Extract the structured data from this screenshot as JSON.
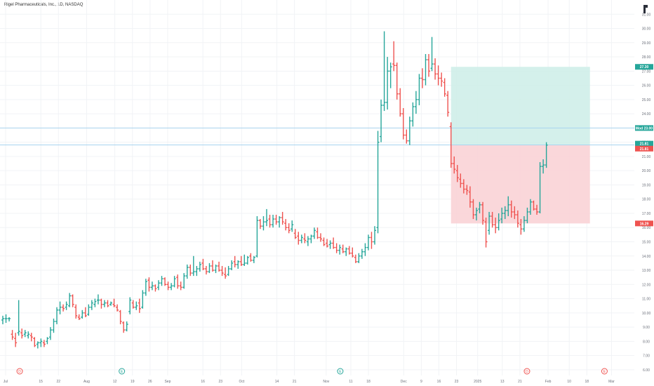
{
  "header": {
    "title": "Rigel Pharmaceuticals, Inc., 1D, NASDAQ"
  },
  "colors": {
    "up": "#26a69a",
    "down": "#ef5350",
    "profit_zone": "#cfeee9",
    "loss_zone": "#f9d3d6",
    "hline": "#a8d4ef",
    "grid": "#f1f3f6",
    "axis_text": "#6b6f7a"
  },
  "chart_data": {
    "type": "ohlc",
    "title": "Rigel Pharmaceuticals, Inc., 1D, NASDAQ",
    "ylim": [
      5.6,
      32.0
    ],
    "y_ticks": [
      "6.00",
      "7.00",
      "8.00",
      "9.00",
      "10.00",
      "11.00",
      "12.00",
      "13.00",
      "14.00",
      "15.00",
      "16.00",
      "17.00",
      "18.00",
      "19.00",
      "20.00",
      "21.00",
      "22.00",
      "23.00",
      "24.00",
      "25.00",
      "26.00",
      "27.00",
      "28.00",
      "29.00",
      "30.00",
      "31.00"
    ],
    "x_ticks": [
      {
        "label": "Jul",
        "day": 0
      },
      {
        "label": "15",
        "day": 10
      },
      {
        "label": "22",
        "day": 15
      },
      {
        "label": "Aug",
        "day": 23
      },
      {
        "label": "12",
        "day": 31
      },
      {
        "label": "19",
        "day": 36
      },
      {
        "label": "26",
        "day": 41
      },
      {
        "label": "Sep",
        "day": 46
      },
      {
        "label": "16",
        "day": 56
      },
      {
        "label": "23",
        "day": 61
      },
      {
        "label": "Oct",
        "day": 67
      },
      {
        "label": "14",
        "day": 77
      },
      {
        "label": "21",
        "day": 82
      },
      {
        "label": "Nov",
        "day": 91
      },
      {
        "label": "11",
        "day": 98
      },
      {
        "label": "18",
        "day": 103
      },
      {
        "label": "Dec",
        "day": 113
      },
      {
        "label": "9",
        "day": 118
      },
      {
        "label": "16",
        "day": 123
      },
      {
        "label": "23",
        "day": 128
      },
      {
        "label": "2025",
        "day": 134
      },
      {
        "label": "13",
        "day": 141
      },
      {
        "label": "21",
        "day": 146
      },
      {
        "label": "Feb",
        "day": 154
      },
      {
        "label": "10",
        "day": 160
      },
      {
        "label": "18",
        "day": 165
      },
      {
        "label": "Mar",
        "day": 172
      }
    ],
    "bars": [
      {
        "o": 9.5,
        "h": 9.8,
        "l": 9.2,
        "c": 9.6
      },
      {
        "o": 9.6,
        "h": 9.9,
        "l": 9.3,
        "c": 9.6
      },
      {
        "o": 9.6,
        "h": 9.7,
        "l": 9.4,
        "c": 9.6
      },
      {
        "o": 8.5,
        "h": 8.8,
        "l": 8.1,
        "c": 8.3
      },
      {
        "o": 8.2,
        "h": 8.6,
        "l": 7.6,
        "c": 7.9
      },
      {
        "o": 8.6,
        "h": 10.9,
        "l": 8.4,
        "c": 8.7
      },
      {
        "o": 8.6,
        "h": 8.9,
        "l": 8.2,
        "c": 8.4
      },
      {
        "o": 8.5,
        "h": 8.8,
        "l": 8.3,
        "c": 8.6
      },
      {
        "o": 8.4,
        "h": 8.7,
        "l": 8.2,
        "c": 8.5
      },
      {
        "o": 8.4,
        "h": 8.6,
        "l": 8.0,
        "c": 8.3
      },
      {
        "o": 8.2,
        "h": 8.3,
        "l": 7.6,
        "c": 7.7
      },
      {
        "o": 7.8,
        "h": 8.0,
        "l": 7.5,
        "c": 7.9
      },
      {
        "o": 7.9,
        "h": 8.2,
        "l": 7.6,
        "c": 8.0
      },
      {
        "o": 7.9,
        "h": 8.1,
        "l": 7.6,
        "c": 7.8
      },
      {
        "o": 8.0,
        "h": 8.3,
        "l": 7.8,
        "c": 8.2
      },
      {
        "o": 8.3,
        "h": 9.0,
        "l": 8.1,
        "c": 8.8
      },
      {
        "o": 8.8,
        "h": 9.6,
        "l": 8.6,
        "c": 9.4
      },
      {
        "o": 9.4,
        "h": 10.4,
        "l": 9.2,
        "c": 10.2
      },
      {
        "o": 10.2,
        "h": 10.8,
        "l": 9.9,
        "c": 10.4
      },
      {
        "o": 10.4,
        "h": 10.6,
        "l": 10.1,
        "c": 10.3
      },
      {
        "o": 10.4,
        "h": 10.8,
        "l": 10.2,
        "c": 10.6
      },
      {
        "o": 10.5,
        "h": 11.4,
        "l": 10.4,
        "c": 11.2
      },
      {
        "o": 11.2,
        "h": 11.3,
        "l": 10.4,
        "c": 10.6
      },
      {
        "o": 10.4,
        "h": 10.6,
        "l": 9.6,
        "c": 9.8
      },
      {
        "o": 9.7,
        "h": 9.9,
        "l": 9.5,
        "c": 9.6
      },
      {
        "o": 9.7,
        "h": 10.2,
        "l": 9.6,
        "c": 10.0
      },
      {
        "o": 10.0,
        "h": 10.4,
        "l": 9.7,
        "c": 9.8
      },
      {
        "o": 9.9,
        "h": 10.6,
        "l": 9.8,
        "c": 10.4
      },
      {
        "o": 10.4,
        "h": 10.9,
        "l": 10.2,
        "c": 10.7
      },
      {
        "o": 10.6,
        "h": 11.0,
        "l": 10.4,
        "c": 10.8
      },
      {
        "o": 10.9,
        "h": 11.3,
        "l": 10.6,
        "c": 10.9
      },
      {
        "o": 10.9,
        "h": 11.0,
        "l": 10.3,
        "c": 10.6
      },
      {
        "o": 10.6,
        "h": 10.9,
        "l": 10.4,
        "c": 10.7
      },
      {
        "o": 10.7,
        "h": 10.9,
        "l": 10.4,
        "c": 10.5
      },
      {
        "o": 10.6,
        "h": 10.8,
        "l": 10.5,
        "c": 10.7
      },
      {
        "o": 10.6,
        "h": 11.0,
        "l": 10.4,
        "c": 10.5
      },
      {
        "o": 10.4,
        "h": 10.6,
        "l": 10.1,
        "c": 10.2
      },
      {
        "o": 10.1,
        "h": 10.2,
        "l": 9.2,
        "c": 9.4
      },
      {
        "o": 9.3,
        "h": 9.4,
        "l": 8.6,
        "c": 8.8
      },
      {
        "o": 8.8,
        "h": 9.4,
        "l": 8.7,
        "c": 9.2
      },
      {
        "o": 10.1,
        "h": 11.1,
        "l": 9.9,
        "c": 10.9
      },
      {
        "o": 10.7,
        "h": 10.9,
        "l": 10.3,
        "c": 10.4
      },
      {
        "o": 10.4,
        "h": 10.8,
        "l": 10.2,
        "c": 10.5
      },
      {
        "o": 10.7,
        "h": 11.0,
        "l": 10.0,
        "c": 10.3
      },
      {
        "o": 10.4,
        "h": 11.6,
        "l": 10.3,
        "c": 11.4
      },
      {
        "o": 11.4,
        "h": 12.4,
        "l": 11.2,
        "c": 12.2
      },
      {
        "o": 12.3,
        "h": 12.5,
        "l": 11.5,
        "c": 11.8
      },
      {
        "o": 11.8,
        "h": 12.2,
        "l": 11.6,
        "c": 11.9
      },
      {
        "o": 11.9,
        "h": 12.0,
        "l": 11.5,
        "c": 11.7
      },
      {
        "o": 11.8,
        "h": 12.3,
        "l": 11.6,
        "c": 12.1
      },
      {
        "o": 12.1,
        "h": 12.6,
        "l": 11.9,
        "c": 12.4
      },
      {
        "o": 12.4,
        "h": 12.5,
        "l": 11.9,
        "c": 12.0
      },
      {
        "o": 12.0,
        "h": 12.2,
        "l": 11.6,
        "c": 11.8
      },
      {
        "o": 11.8,
        "h": 12.1,
        "l": 11.6,
        "c": 11.9
      },
      {
        "o": 11.9,
        "h": 12.6,
        "l": 11.8,
        "c": 12.4
      },
      {
        "o": 12.5,
        "h": 12.7,
        "l": 11.7,
        "c": 11.9
      },
      {
        "o": 11.9,
        "h": 12.2,
        "l": 11.6,
        "c": 11.8
      },
      {
        "o": 11.8,
        "h": 12.8,
        "l": 11.7,
        "c": 12.6
      },
      {
        "o": 12.6,
        "h": 13.4,
        "l": 12.4,
        "c": 13.2
      },
      {
        "o": 13.2,
        "h": 13.4,
        "l": 12.6,
        "c": 12.8
      },
      {
        "o": 12.8,
        "h": 14.0,
        "l": 12.6,
        "c": 12.9
      },
      {
        "o": 12.9,
        "h": 13.3,
        "l": 12.6,
        "c": 13.1
      },
      {
        "o": 13.1,
        "h": 13.6,
        "l": 12.9,
        "c": 13.4
      },
      {
        "o": 13.5,
        "h": 13.8,
        "l": 13.0,
        "c": 13.1
      },
      {
        "o": 13.1,
        "h": 13.3,
        "l": 12.7,
        "c": 12.9
      },
      {
        "o": 12.9,
        "h": 13.5,
        "l": 12.8,
        "c": 13.3
      },
      {
        "o": 13.3,
        "h": 13.7,
        "l": 12.9,
        "c": 13.0
      },
      {
        "o": 13.0,
        "h": 13.4,
        "l": 12.8,
        "c": 13.3
      },
      {
        "o": 13.3,
        "h": 13.6,
        "l": 12.9,
        "c": 13.0
      },
      {
        "o": 13.0,
        "h": 13.3,
        "l": 12.6,
        "c": 12.8
      },
      {
        "o": 12.7,
        "h": 13.2,
        "l": 12.4,
        "c": 12.6
      },
      {
        "o": 12.7,
        "h": 13.3,
        "l": 12.6,
        "c": 13.1
      },
      {
        "o": 13.1,
        "h": 13.7,
        "l": 13.0,
        "c": 13.5
      },
      {
        "o": 13.6,
        "h": 14.0,
        "l": 13.2,
        "c": 13.4
      },
      {
        "o": 13.4,
        "h": 13.7,
        "l": 13.1,
        "c": 13.6
      },
      {
        "o": 13.6,
        "h": 14.0,
        "l": 13.3,
        "c": 13.4
      },
      {
        "o": 13.4,
        "h": 14.1,
        "l": 13.3,
        "c": 13.5
      },
      {
        "o": 13.5,
        "h": 14.0,
        "l": 13.4,
        "c": 13.9
      },
      {
        "o": 14.0,
        "h": 14.2,
        "l": 13.6,
        "c": 13.7
      },
      {
        "o": 13.7,
        "h": 14.0,
        "l": 13.5,
        "c": 13.9
      },
      {
        "o": 14.0,
        "h": 16.8,
        "l": 13.9,
        "c": 16.5
      },
      {
        "o": 16.5,
        "h": 16.6,
        "l": 15.9,
        "c": 16.1
      },
      {
        "o": 16.1,
        "h": 16.8,
        "l": 15.8,
        "c": 16.4
      },
      {
        "o": 16.4,
        "h": 17.3,
        "l": 16.1,
        "c": 16.5
      },
      {
        "o": 16.6,
        "h": 16.9,
        "l": 16.0,
        "c": 16.2
      },
      {
        "o": 16.2,
        "h": 16.9,
        "l": 16.0,
        "c": 16.6
      },
      {
        "o": 16.6,
        "h": 16.9,
        "l": 16.2,
        "c": 16.4
      },
      {
        "o": 16.4,
        "h": 16.8,
        "l": 16.0,
        "c": 16.7
      },
      {
        "o": 16.7,
        "h": 17.1,
        "l": 16.2,
        "c": 16.4
      },
      {
        "o": 16.3,
        "h": 16.6,
        "l": 15.8,
        "c": 16.0
      },
      {
        "o": 16.0,
        "h": 16.3,
        "l": 15.6,
        "c": 15.8
      },
      {
        "o": 15.9,
        "h": 16.5,
        "l": 15.7,
        "c": 16.2
      },
      {
        "o": 15.6,
        "h": 15.9,
        "l": 15.2,
        "c": 15.3
      },
      {
        "o": 15.4,
        "h": 15.7,
        "l": 14.8,
        "c": 15.1
      },
      {
        "o": 15.1,
        "h": 15.5,
        "l": 14.9,
        "c": 15.3
      },
      {
        "o": 15.2,
        "h": 15.6,
        "l": 14.9,
        "c": 15.1
      },
      {
        "o": 15.0,
        "h": 15.4,
        "l": 14.7,
        "c": 15.2
      },
      {
        "o": 15.2,
        "h": 15.5,
        "l": 14.9,
        "c": 15.4
      },
      {
        "o": 15.4,
        "h": 16.0,
        "l": 15.2,
        "c": 15.8
      },
      {
        "o": 15.7,
        "h": 16.0,
        "l": 15.2,
        "c": 15.3
      },
      {
        "o": 15.3,
        "h": 15.6,
        "l": 15.0,
        "c": 15.2
      },
      {
        "o": 15.1,
        "h": 15.3,
        "l": 14.7,
        "c": 14.8
      },
      {
        "o": 14.9,
        "h": 15.2,
        "l": 14.6,
        "c": 14.7
      },
      {
        "o": 14.8,
        "h": 15.1,
        "l": 14.5,
        "c": 14.9
      },
      {
        "o": 14.9,
        "h": 15.3,
        "l": 14.5,
        "c": 14.6
      },
      {
        "o": 14.6,
        "h": 14.9,
        "l": 14.2,
        "c": 14.4
      },
      {
        "o": 14.4,
        "h": 14.8,
        "l": 14.1,
        "c": 14.6
      },
      {
        "o": 14.5,
        "h": 14.8,
        "l": 14.2,
        "c": 14.3
      },
      {
        "o": 14.3,
        "h": 14.6,
        "l": 14.0,
        "c": 14.5
      },
      {
        "o": 14.5,
        "h": 14.7,
        "l": 14.1,
        "c": 14.2
      },
      {
        "o": 14.2,
        "h": 14.6,
        "l": 13.9,
        "c": 14.0
      },
      {
        "o": 13.9,
        "h": 14.1,
        "l": 13.5,
        "c": 13.6
      },
      {
        "o": 13.6,
        "h": 14.2,
        "l": 13.5,
        "c": 14.0
      },
      {
        "o": 14.0,
        "h": 14.5,
        "l": 13.8,
        "c": 14.3
      },
      {
        "o": 14.3,
        "h": 14.9,
        "l": 14.0,
        "c": 14.6
      },
      {
        "o": 14.6,
        "h": 15.5,
        "l": 14.4,
        "c": 15.3
      },
      {
        "o": 15.3,
        "h": 15.7,
        "l": 14.5,
        "c": 15.0
      },
      {
        "o": 15.0,
        "h": 16.1,
        "l": 14.8,
        "c": 15.8
      },
      {
        "o": 16.0,
        "h": 22.8,
        "l": 15.6,
        "c": 22.0
      },
      {
        "o": 22.4,
        "h": 25.0,
        "l": 22.0,
        "c": 24.6
      },
      {
        "o": 24.6,
        "h": 29.8,
        "l": 24.2,
        "c": 24.8
      },
      {
        "o": 24.8,
        "h": 28.0,
        "l": 24.3,
        "c": 27.0
      },
      {
        "o": 27.0,
        "h": 27.6,
        "l": 25.8,
        "c": 27.3
      },
      {
        "o": 27.5,
        "h": 29.1,
        "l": 27.0,
        "c": 27.4
      },
      {
        "o": 27.4,
        "h": 27.6,
        "l": 25.0,
        "c": 25.4
      },
      {
        "o": 25.4,
        "h": 25.8,
        "l": 23.8,
        "c": 24.0
      },
      {
        "o": 24.0,
        "h": 24.4,
        "l": 22.2,
        "c": 22.5
      },
      {
        "o": 22.5,
        "h": 22.9,
        "l": 21.9,
        "c": 22.1
      },
      {
        "o": 22.1,
        "h": 23.8,
        "l": 21.8,
        "c": 23.5
      },
      {
        "o": 23.5,
        "h": 24.8,
        "l": 23.1,
        "c": 24.5
      },
      {
        "o": 24.5,
        "h": 25.6,
        "l": 24.0,
        "c": 25.0
      },
      {
        "o": 25.0,
        "h": 26.8,
        "l": 24.6,
        "c": 26.5
      },
      {
        "o": 26.5,
        "h": 27.2,
        "l": 25.8,
        "c": 26.4
      },
      {
        "o": 26.4,
        "h": 28.2,
        "l": 26.0,
        "c": 27.8
      },
      {
        "o": 27.8,
        "h": 28.2,
        "l": 26.6,
        "c": 27.0
      },
      {
        "o": 27.2,
        "h": 29.4,
        "l": 27.0,
        "c": 27.5
      },
      {
        "o": 27.5,
        "h": 27.9,
        "l": 26.4,
        "c": 26.8
      },
      {
        "o": 26.8,
        "h": 27.4,
        "l": 26.0,
        "c": 26.5
      },
      {
        "o": 26.5,
        "h": 26.9,
        "l": 25.9,
        "c": 26.3
      },
      {
        "o": 26.2,
        "h": 26.5,
        "l": 25.2,
        "c": 25.4
      },
      {
        "o": 25.3,
        "h": 25.6,
        "l": 23.8,
        "c": 24.1
      },
      {
        "o": 23.1,
        "h": 23.4,
        "l": 20.2,
        "c": 20.5
      },
      {
        "o": 20.5,
        "h": 21.0,
        "l": 19.8,
        "c": 20.1
      },
      {
        "o": 20.0,
        "h": 20.4,
        "l": 19.2,
        "c": 19.5
      },
      {
        "o": 19.4,
        "h": 19.8,
        "l": 18.8,
        "c": 19.1
      },
      {
        "o": 19.1,
        "h": 19.4,
        "l": 18.4,
        "c": 18.7
      },
      {
        "o": 18.7,
        "h": 19.0,
        "l": 18.3,
        "c": 18.6
      },
      {
        "o": 18.5,
        "h": 18.9,
        "l": 17.4,
        "c": 17.8
      },
      {
        "o": 17.8,
        "h": 18.0,
        "l": 16.6,
        "c": 16.9
      },
      {
        "o": 16.9,
        "h": 17.4,
        "l": 16.5,
        "c": 17.2
      },
      {
        "o": 17.3,
        "h": 17.8,
        "l": 17.0,
        "c": 17.6
      },
      {
        "o": 17.6,
        "h": 17.8,
        "l": 16.2,
        "c": 16.5
      },
      {
        "o": 16.4,
        "h": 16.7,
        "l": 14.6,
        "c": 15.0
      },
      {
        "o": 15.8,
        "h": 17.1,
        "l": 15.5,
        "c": 16.8
      },
      {
        "o": 16.8,
        "h": 17.1,
        "l": 16.0,
        "c": 16.2
      },
      {
        "o": 16.2,
        "h": 16.7,
        "l": 15.6,
        "c": 16.0
      },
      {
        "o": 16.0,
        "h": 17.0,
        "l": 15.8,
        "c": 16.5
      },
      {
        "o": 16.6,
        "h": 17.4,
        "l": 16.3,
        "c": 17.0
      },
      {
        "o": 17.0,
        "h": 17.5,
        "l": 16.6,
        "c": 17.2
      },
      {
        "o": 17.2,
        "h": 18.2,
        "l": 16.8,
        "c": 17.6
      },
      {
        "o": 17.6,
        "h": 17.9,
        "l": 16.7,
        "c": 17.1
      },
      {
        "o": 17.1,
        "h": 17.5,
        "l": 16.6,
        "c": 16.9
      },
      {
        "o": 16.9,
        "h": 17.2,
        "l": 16.0,
        "c": 16.3
      },
      {
        "o": 16.2,
        "h": 16.6,
        "l": 15.5,
        "c": 15.9
      },
      {
        "o": 15.9,
        "h": 16.8,
        "l": 15.7,
        "c": 16.5
      },
      {
        "o": 16.5,
        "h": 17.4,
        "l": 16.3,
        "c": 17.1
      },
      {
        "o": 17.1,
        "h": 18.0,
        "l": 16.9,
        "c": 17.8
      },
      {
        "o": 17.8,
        "h": 17.9,
        "l": 17.2,
        "c": 17.3
      },
      {
        "o": 17.3,
        "h": 17.6,
        "l": 16.9,
        "c": 17.1
      },
      {
        "o": 17.1,
        "h": 20.6,
        "l": 17.0,
        "c": 20.3
      },
      {
        "o": 20.3,
        "h": 20.8,
        "l": 19.8,
        "c": 20.4
      },
      {
        "o": 20.4,
        "h": 22.0,
        "l": 20.2,
        "c": 21.8
      }
    ],
    "position": {
      "type": "long",
      "entry": 21.81,
      "target": 27.3,
      "stop": 16.29,
      "start_bar": 141,
      "end_width_days": 33
    },
    "horizontal_lines": [
      {
        "price": 23.0,
        "label": "Mod"
      },
      {
        "price": 21.81,
        "label": ""
      }
    ],
    "price_labels": [
      {
        "price": 27.3,
        "text": "27.30",
        "color": "#26a69a"
      },
      {
        "price": 23.0,
        "text": "Mod 23.00",
        "color": "#26a69a"
      },
      {
        "price": 21.9,
        "text": "21.81",
        "color": "#26a69a"
      },
      {
        "price": 21.55,
        "text": "21.81",
        "color": "#ef5350"
      },
      {
        "price": 16.29,
        "text": "16.29",
        "color": "#ef5350"
      }
    ],
    "event_markers": [
      {
        "x_day": 4,
        "label": "D",
        "color": "#ef5350"
      },
      {
        "x_day": 33,
        "label": "E",
        "color": "#26a69a"
      },
      {
        "x_day": 95,
        "label": "E",
        "color": "#26a69a"
      },
      {
        "x_day": 148,
        "label": "D",
        "color": "#ef5350"
      },
      {
        "x_day": 170,
        "label": "E",
        "color": "#ef5350",
        "outline": true
      }
    ],
    "grid": true
  }
}
